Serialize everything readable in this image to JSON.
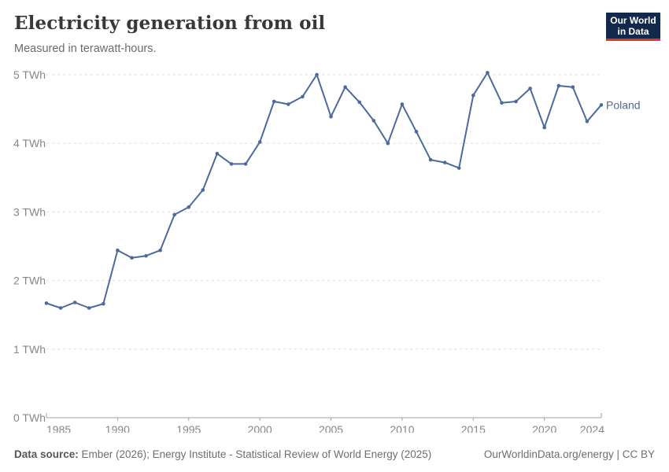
{
  "header": {
    "title": "Electricity generation from oil",
    "subtitle": "Measured in terawatt-hours.",
    "logo_line1": "Our World",
    "logo_line2": "in Data"
  },
  "chart_data": {
    "type": "line",
    "title": "Electricity generation from oil",
    "ylabel": "",
    "xlabel": "",
    "unit_suffix": " TWh",
    "xlim": [
      1985,
      2024
    ],
    "ylim": [
      0,
      5
    ],
    "grid": "horizontal-dashed",
    "legend_position": "end-of-line",
    "x_ticks": [
      1985,
      1990,
      1995,
      2000,
      2005,
      2010,
      2015,
      2020,
      2024
    ],
    "y_ticks": [
      0,
      1,
      2,
      3,
      4,
      5
    ],
    "series": [
      {
        "name": "Poland",
        "color": "#4C6A9C",
        "x": [
          1985,
          1986,
          1987,
          1988,
          1989,
          1990,
          1991,
          1992,
          1993,
          1994,
          1995,
          1996,
          1997,
          1998,
          1999,
          2000,
          2001,
          2002,
          2003,
          2004,
          2005,
          2006,
          2007,
          2008,
          2009,
          2010,
          2011,
          2012,
          2013,
          2014,
          2015,
          2016,
          2017,
          2018,
          2019,
          2020,
          2021,
          2022,
          2023,
          2024
        ],
        "values": [
          1.67,
          1.6,
          1.68,
          1.6,
          1.66,
          2.44,
          2.33,
          2.36,
          2.44,
          2.96,
          3.07,
          3.32,
          3.85,
          3.7,
          3.7,
          4.02,
          4.61,
          4.57,
          4.68,
          5.0,
          4.39,
          4.82,
          4.6,
          4.33,
          4.0,
          4.57,
          4.17,
          3.76,
          3.72,
          3.64,
          4.7,
          5.03,
          4.59,
          4.61,
          4.8,
          4.23,
          4.84,
          4.82,
          4.32,
          4.56
        ]
      }
    ]
  },
  "footer": {
    "source_label": "Data source:",
    "source_text": " Ember (2026); Energy Institute - Statistical Review of World Energy (2025)",
    "license": "OurWorldinData.org/energy | CC BY"
  },
  "colors": {
    "line": "#4C6A9C",
    "grid": "#dcdcdc",
    "axis": "#a3a3a3",
    "tick_label": "#878787",
    "logo_bg": "#13294b",
    "logo_red": "#dc352c"
  }
}
